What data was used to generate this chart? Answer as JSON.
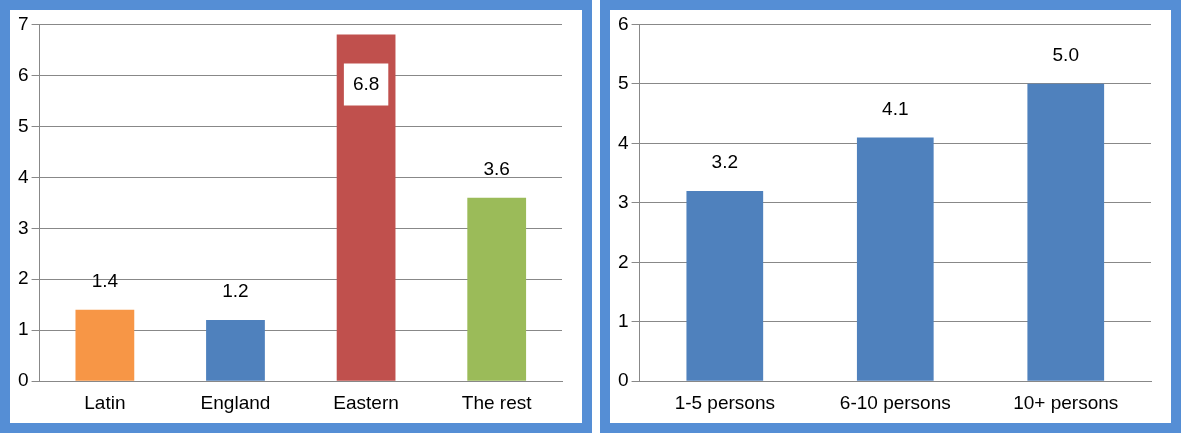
{
  "chart_data": [
    {
      "type": "bar",
      "categories": [
        "Latin",
        "England",
        "Eastern",
        "The rest"
      ],
      "values": [
        1.4,
        1.2,
        6.8,
        3.6
      ],
      "colors": [
        "#f79646",
        "#4f81bd",
        "#c0504d",
        "#9bbb59"
      ],
      "ylim": [
        0,
        7
      ],
      "yticks": [
        0,
        1,
        2,
        3,
        4,
        5,
        6,
        7
      ],
      "grid": "y",
      "data_labels": true
    },
    {
      "type": "bar",
      "categories": [
        "1-5 persons",
        "6-10 persons",
        "10+ persons"
      ],
      "values": [
        3.2,
        4.1,
        5.0
      ],
      "colors": [
        "#4f81bd",
        "#4f81bd",
        "#4f81bd"
      ],
      "ylim": [
        0,
        6
      ],
      "yticks": [
        0,
        1,
        2,
        3,
        4,
        5,
        6
      ],
      "grid": "y",
      "data_labels": true,
      "value_labels": [
        "3.2",
        "4.1",
        "5.0"
      ]
    }
  ]
}
